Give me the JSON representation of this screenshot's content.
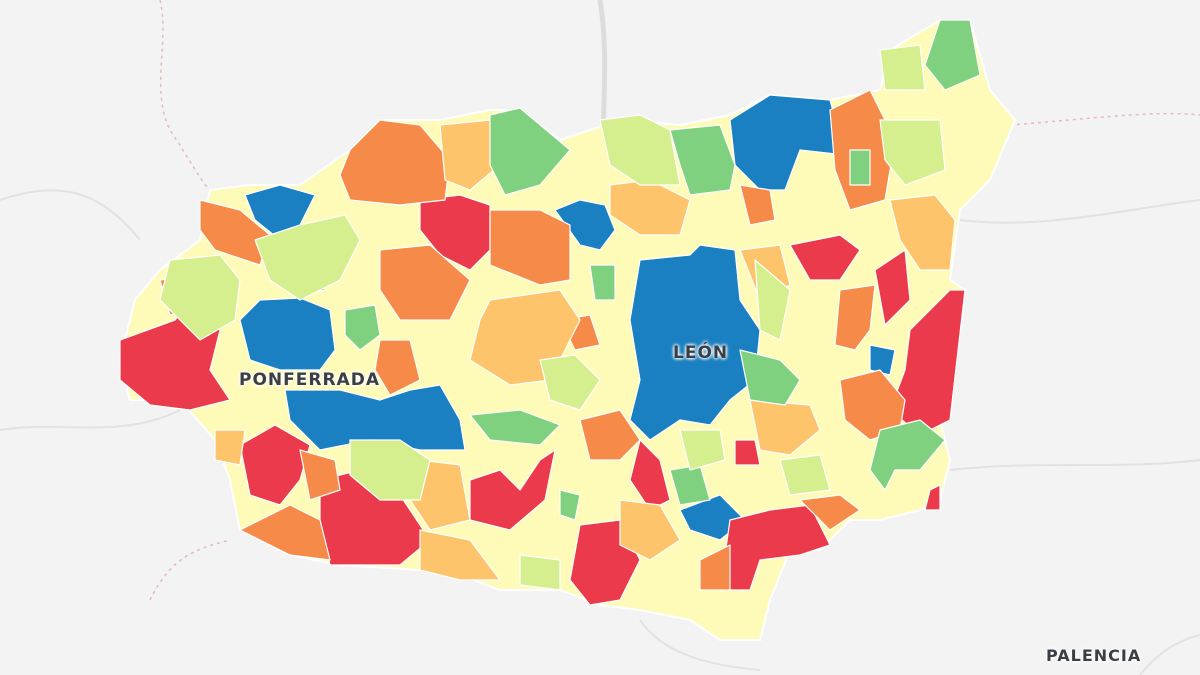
{
  "map": {
    "labels": {
      "ponferrada": "PONFERRADA",
      "leon": "LEÓN",
      "palencia": "PALENCIA"
    },
    "colors": {
      "background": "#f3f3f3",
      "province_base": "#fefbb8",
      "blue": "#1a80c1",
      "red": "#ea3a4c",
      "orange": "#f68a48",
      "light_orange": "#fdc46b",
      "yellow": "#fefbb8",
      "light_green": "#d5ee8e",
      "green": "#7fd17f"
    },
    "region_classes": [
      "blue",
      "blue",
      "blue",
      "blue",
      "blue",
      "blue",
      "blue",
      "blue",
      "red",
      "red",
      "red",
      "red",
      "red",
      "red",
      "red",
      "red",
      "red",
      "red",
      "red",
      "red",
      "red",
      "orange",
      "orange",
      "orange",
      "orange",
      "orange",
      "orange",
      "orange",
      "orange",
      "orange",
      "orange",
      "orange",
      "orange",
      "orange",
      "orange",
      "orange",
      "orange",
      "light_orange",
      "light_orange",
      "light_orange",
      "light_orange",
      "light_orange",
      "light_orange",
      "light_orange",
      "light_orange",
      "light_orange",
      "light_orange",
      "green",
      "green",
      "green",
      "green",
      "green",
      "green",
      "green",
      "green",
      "green",
      "green",
      "green",
      "green",
      "light_green",
      "light_green",
      "light_green",
      "light_green",
      "light_green",
      "light_green",
      "light_green",
      "light_green",
      "light_green",
      "light_green",
      "light_green"
    ]
  }
}
